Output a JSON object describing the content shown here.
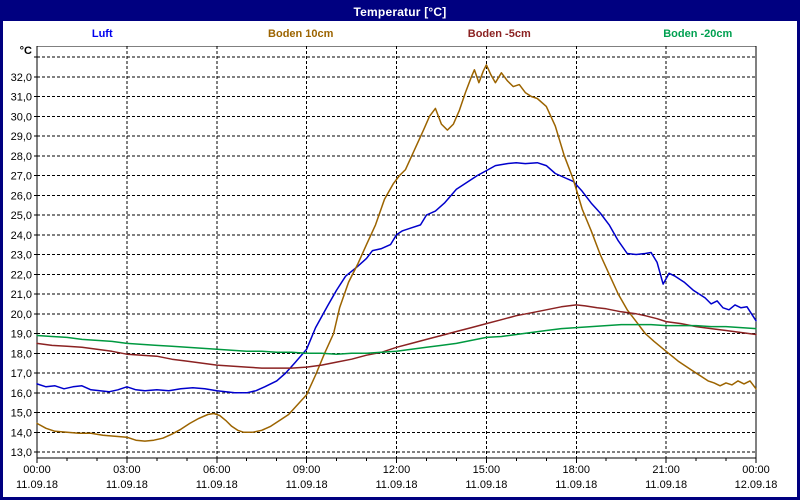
{
  "window": {
    "title": "Temperatur [°C]"
  },
  "legend": [
    {
      "id": "luft",
      "label": "Luft",
      "color": "#0000EE"
    },
    {
      "id": "boden-10cm",
      "label": "Boden 10cm",
      "color": "#9C6400"
    },
    {
      "id": "boden-minus5cm",
      "label": "Boden -5cm",
      "color": "#8B2222"
    },
    {
      "id": "boden-minus20cm",
      "label": "Boden -20cm",
      "color": "#00A050"
    }
  ],
  "chart_data": {
    "type": "line",
    "title": "Temperatur [°C]",
    "ylabel": "°C",
    "ylim": [
      13.0,
      33.0
    ],
    "ytick_step": 1.0,
    "ytick_labels_from": 13.0,
    "ytick_labels_to": 32.0,
    "ytick_decimal_separator": ",",
    "xlim_hours": [
      0,
      24
    ],
    "x_major_step_hours": 3,
    "x_minor_step_hours": 1,
    "grid": "dashed",
    "legend_position": "top",
    "xticks": [
      {
        "time": "00:00",
        "date": "11.09.18"
      },
      {
        "time": "03:00",
        "date": "11.09.18"
      },
      {
        "time": "06:00",
        "date": "11.09.18"
      },
      {
        "time": "09:00",
        "date": "11.09.18"
      },
      {
        "time": "12:00",
        "date": "11.09.18"
      },
      {
        "time": "15:00",
        "date": "11.09.18"
      },
      {
        "time": "18:00",
        "date": "11.09.18"
      },
      {
        "time": "21:00",
        "date": "11.09.18"
      },
      {
        "time": "00:00",
        "date": "12.09.18"
      }
    ],
    "series": [
      {
        "name": "Luft",
        "color": "#0000CC",
        "points": [
          [
            0,
            16.45
          ],
          [
            0.3,
            16.3
          ],
          [
            0.6,
            16.35
          ],
          [
            0.9,
            16.2
          ],
          [
            1.2,
            16.3
          ],
          [
            1.5,
            16.35
          ],
          [
            1.8,
            16.15
          ],
          [
            2.1,
            16.1
          ],
          [
            2.4,
            16.05
          ],
          [
            2.7,
            16.15
          ],
          [
            3.0,
            16.3
          ],
          [
            3.3,
            16.15
          ],
          [
            3.6,
            16.1
          ],
          [
            4.0,
            16.15
          ],
          [
            4.4,
            16.1
          ],
          [
            4.8,
            16.2
          ],
          [
            5.2,
            16.25
          ],
          [
            5.6,
            16.2
          ],
          [
            6.0,
            16.1
          ],
          [
            6.3,
            16.05
          ],
          [
            6.6,
            16.0
          ],
          [
            7.0,
            16.0
          ],
          [
            7.3,
            16.1
          ],
          [
            7.6,
            16.3
          ],
          [
            8.0,
            16.6
          ],
          [
            8.3,
            17.0
          ],
          [
            8.6,
            17.5
          ],
          [
            9.0,
            18.2
          ],
          [
            9.3,
            19.3
          ],
          [
            9.7,
            20.4
          ],
          [
            10.0,
            21.2
          ],
          [
            10.3,
            21.9
          ],
          [
            10.7,
            22.4
          ],
          [
            11.0,
            22.8
          ],
          [
            11.2,
            23.2
          ],
          [
            11.5,
            23.3
          ],
          [
            11.8,
            23.5
          ],
          [
            12.0,
            24.0
          ],
          [
            12.2,
            24.2
          ],
          [
            12.5,
            24.35
          ],
          [
            12.8,
            24.5
          ],
          [
            13.0,
            25.0
          ],
          [
            13.3,
            25.2
          ],
          [
            13.6,
            25.6
          ],
          [
            14.0,
            26.3
          ],
          [
            14.3,
            26.6
          ],
          [
            14.7,
            27.0
          ],
          [
            15.0,
            27.25
          ],
          [
            15.3,
            27.5
          ],
          [
            15.7,
            27.6
          ],
          [
            16.0,
            27.65
          ],
          [
            16.3,
            27.6
          ],
          [
            16.7,
            27.65
          ],
          [
            17.0,
            27.5
          ],
          [
            17.3,
            27.1
          ],
          [
            17.6,
            26.9
          ],
          [
            17.9,
            26.7
          ],
          [
            18.2,
            26.2
          ],
          [
            18.5,
            25.6
          ],
          [
            18.8,
            25.1
          ],
          [
            19.1,
            24.5
          ],
          [
            19.4,
            23.7
          ],
          [
            19.7,
            23.05
          ],
          [
            20.0,
            23.0
          ],
          [
            20.3,
            23.05
          ],
          [
            20.5,
            23.1
          ],
          [
            20.7,
            22.6
          ],
          [
            20.9,
            21.5
          ],
          [
            21.1,
            22.05
          ],
          [
            21.3,
            21.9
          ],
          [
            21.6,
            21.6
          ],
          [
            21.9,
            21.2
          ],
          [
            22.1,
            21.0
          ],
          [
            22.3,
            20.8
          ],
          [
            22.5,
            20.5
          ],
          [
            22.7,
            20.65
          ],
          [
            22.9,
            20.3
          ],
          [
            23.1,
            20.2
          ],
          [
            23.3,
            20.45
          ],
          [
            23.5,
            20.3
          ],
          [
            23.7,
            20.35
          ],
          [
            23.85,
            20.0
          ],
          [
            24.0,
            19.65
          ]
        ]
      },
      {
        "name": "Boden 10cm",
        "color": "#9C6400",
        "points": [
          [
            0,
            14.45
          ],
          [
            0.3,
            14.2
          ],
          [
            0.6,
            14.05
          ],
          [
            1.0,
            14.0
          ],
          [
            1.4,
            13.95
          ],
          [
            1.8,
            13.95
          ],
          [
            2.2,
            13.85
          ],
          [
            2.6,
            13.8
          ],
          [
            3.0,
            13.75
          ],
          [
            3.3,
            13.6
          ],
          [
            3.6,
            13.55
          ],
          [
            3.9,
            13.6
          ],
          [
            4.2,
            13.7
          ],
          [
            4.5,
            13.9
          ],
          [
            4.8,
            14.15
          ],
          [
            5.1,
            14.45
          ],
          [
            5.4,
            14.7
          ],
          [
            5.7,
            14.9
          ],
          [
            5.9,
            14.95
          ],
          [
            6.1,
            14.85
          ],
          [
            6.3,
            14.6
          ],
          [
            6.5,
            14.3
          ],
          [
            6.7,
            14.1
          ],
          [
            6.9,
            14.0
          ],
          [
            7.2,
            14.0
          ],
          [
            7.5,
            14.1
          ],
          [
            7.8,
            14.3
          ],
          [
            8.1,
            14.6
          ],
          [
            8.4,
            14.9
          ],
          [
            8.7,
            15.4
          ],
          [
            9.0,
            15.9
          ],
          [
            9.3,
            16.9
          ],
          [
            9.6,
            18.0
          ],
          [
            9.9,
            19.0
          ],
          [
            10.1,
            20.3
          ],
          [
            10.4,
            21.6
          ],
          [
            10.7,
            22.5
          ],
          [
            11.0,
            23.5
          ],
          [
            11.3,
            24.5
          ],
          [
            11.6,
            25.8
          ],
          [
            11.9,
            26.6
          ],
          [
            12.1,
            27.0
          ],
          [
            12.3,
            27.3
          ],
          [
            12.6,
            28.3
          ],
          [
            12.9,
            29.3
          ],
          [
            13.1,
            30.0
          ],
          [
            13.3,
            30.4
          ],
          [
            13.5,
            29.6
          ],
          [
            13.7,
            29.3
          ],
          [
            13.9,
            29.6
          ],
          [
            14.1,
            30.3
          ],
          [
            14.3,
            31.2
          ],
          [
            14.5,
            32.0
          ],
          [
            14.6,
            32.35
          ],
          [
            14.75,
            31.7
          ],
          [
            14.9,
            32.3
          ],
          [
            15.0,
            32.6
          ],
          [
            15.15,
            32.1
          ],
          [
            15.3,
            31.7
          ],
          [
            15.5,
            32.2
          ],
          [
            15.7,
            31.8
          ],
          [
            15.9,
            31.5
          ],
          [
            16.1,
            31.6
          ],
          [
            16.3,
            31.2
          ],
          [
            16.5,
            31.0
          ],
          [
            16.7,
            30.9
          ],
          [
            17.0,
            30.5
          ],
          [
            17.3,
            29.5
          ],
          [
            17.6,
            28.0
          ],
          [
            17.9,
            26.8
          ],
          [
            18.2,
            25.3
          ],
          [
            18.5,
            24.2
          ],
          [
            18.8,
            23.0
          ],
          [
            19.1,
            22.0
          ],
          [
            19.4,
            21.0
          ],
          [
            19.7,
            20.2
          ],
          [
            20.0,
            19.6
          ],
          [
            20.3,
            19.0
          ],
          [
            20.6,
            18.6
          ],
          [
            21.0,
            18.1
          ],
          [
            21.4,
            17.6
          ],
          [
            21.8,
            17.2
          ],
          [
            22.1,
            16.9
          ],
          [
            22.4,
            16.6
          ],
          [
            22.6,
            16.5
          ],
          [
            22.8,
            16.35
          ],
          [
            23.0,
            16.5
          ],
          [
            23.2,
            16.4
          ],
          [
            23.4,
            16.6
          ],
          [
            23.6,
            16.45
          ],
          [
            23.8,
            16.6
          ],
          [
            24.0,
            16.2
          ]
        ]
      },
      {
        "name": "Boden -5cm",
        "color": "#8B2222",
        "points": [
          [
            0,
            18.5
          ],
          [
            0.5,
            18.4
          ],
          [
            1.0,
            18.35
          ],
          [
            1.5,
            18.3
          ],
          [
            2.0,
            18.2
          ],
          [
            2.5,
            18.1
          ],
          [
            3.0,
            17.95
          ],
          [
            3.5,
            17.9
          ],
          [
            4.0,
            17.85
          ],
          [
            4.5,
            17.7
          ],
          [
            5.0,
            17.6
          ],
          [
            5.5,
            17.5
          ],
          [
            6.0,
            17.4
          ],
          [
            6.5,
            17.35
          ],
          [
            7.0,
            17.3
          ],
          [
            7.5,
            17.25
          ],
          [
            8.0,
            17.25
          ],
          [
            8.5,
            17.25
          ],
          [
            9.0,
            17.3
          ],
          [
            9.5,
            17.4
          ],
          [
            10.0,
            17.55
          ],
          [
            10.5,
            17.7
          ],
          [
            11.0,
            17.9
          ],
          [
            11.5,
            18.05
          ],
          [
            12.0,
            18.3
          ],
          [
            12.5,
            18.5
          ],
          [
            13.0,
            18.7
          ],
          [
            13.5,
            18.9
          ],
          [
            14.0,
            19.1
          ],
          [
            14.5,
            19.3
          ],
          [
            15.0,
            19.5
          ],
          [
            15.5,
            19.7
          ],
          [
            16.0,
            19.9
          ],
          [
            16.5,
            20.05
          ],
          [
            17.0,
            20.2
          ],
          [
            17.5,
            20.35
          ],
          [
            18.0,
            20.45
          ],
          [
            18.3,
            20.4
          ],
          [
            18.7,
            20.3
          ],
          [
            19.0,
            20.25
          ],
          [
            19.5,
            20.1
          ],
          [
            20.0,
            20.0
          ],
          [
            20.3,
            19.9
          ],
          [
            20.7,
            19.75
          ],
          [
            21.0,
            19.6
          ],
          [
            21.5,
            19.5
          ],
          [
            22.0,
            19.35
          ],
          [
            22.5,
            19.25
          ],
          [
            23.0,
            19.15
          ],
          [
            23.5,
            19.05
          ],
          [
            24.0,
            18.95
          ]
        ]
      },
      {
        "name": "Boden -20cm",
        "color": "#009940",
        "points": [
          [
            0,
            18.9
          ],
          [
            0.5,
            18.85
          ],
          [
            1.0,
            18.8
          ],
          [
            1.5,
            18.7
          ],
          [
            2.0,
            18.65
          ],
          [
            2.5,
            18.6
          ],
          [
            3.0,
            18.5
          ],
          [
            3.5,
            18.45
          ],
          [
            4.0,
            18.4
          ],
          [
            4.5,
            18.35
          ],
          [
            5.0,
            18.3
          ],
          [
            5.5,
            18.25
          ],
          [
            6.0,
            18.2
          ],
          [
            6.5,
            18.15
          ],
          [
            7.0,
            18.1
          ],
          [
            7.5,
            18.1
          ],
          [
            8.0,
            18.05
          ],
          [
            8.5,
            18.05
          ],
          [
            9.0,
            18.0
          ],
          [
            9.5,
            18.0
          ],
          [
            10.0,
            17.95
          ],
          [
            10.5,
            18.0
          ],
          [
            11.0,
            18.0
          ],
          [
            11.5,
            18.05
          ],
          [
            12.0,
            18.1
          ],
          [
            12.5,
            18.2
          ],
          [
            13.0,
            18.3
          ],
          [
            13.5,
            18.4
          ],
          [
            14.0,
            18.5
          ],
          [
            14.5,
            18.65
          ],
          [
            15.0,
            18.8
          ],
          [
            15.5,
            18.85
          ],
          [
            16.0,
            18.95
          ],
          [
            16.5,
            19.05
          ],
          [
            17.0,
            19.15
          ],
          [
            17.5,
            19.25
          ],
          [
            18.0,
            19.3
          ],
          [
            18.5,
            19.35
          ],
          [
            19.0,
            19.4
          ],
          [
            19.5,
            19.45
          ],
          [
            20.0,
            19.45
          ],
          [
            20.5,
            19.45
          ],
          [
            21.0,
            19.4
          ],
          [
            21.5,
            19.4
          ],
          [
            22.0,
            19.4
          ],
          [
            22.5,
            19.35
          ],
          [
            23.0,
            19.35
          ],
          [
            23.5,
            19.3
          ],
          [
            24.0,
            19.25
          ]
        ]
      }
    ]
  }
}
